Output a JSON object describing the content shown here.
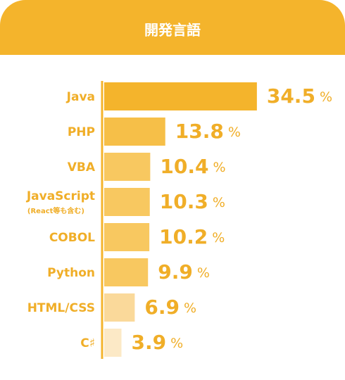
{
  "chart_data": {
    "type": "hbar",
    "title": "開発言語",
    "categories": [
      "Java",
      "PHP",
      "VBA",
      "JavaScript",
      "COBOL",
      "Python",
      "HTML/CSS",
      "C♯"
    ],
    "category_sublabels": [
      null,
      null,
      null,
      "(React等も含む)",
      null,
      null,
      null,
      null
    ],
    "values": [
      34.5,
      13.8,
      10.4,
      10.3,
      10.2,
      9.9,
      6.9,
      3.9
    ],
    "value_unit": "%",
    "colors": [
      "#f4b42c",
      "#f6bf48",
      "#f8c860",
      "#f8c860",
      "#f8c860",
      "#f8c860",
      "#fad99a",
      "#fce9c6"
    ],
    "xlim": [
      0,
      35
    ]
  }
}
